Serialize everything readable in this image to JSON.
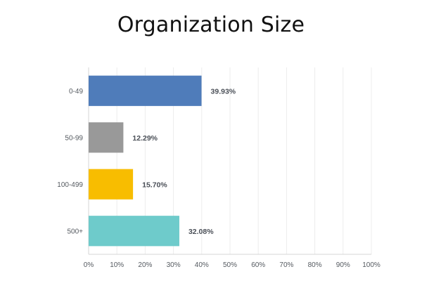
{
  "chart_data": {
    "type": "bar",
    "orientation": "horizontal",
    "title": "Organization Size",
    "categories": [
      "0-49",
      "50-99",
      "100-499",
      "500+"
    ],
    "values": [
      39.93,
      12.29,
      15.7,
      32.08
    ],
    "value_labels": [
      "39.93%",
      "12.29%",
      "15.70%",
      "32.08%"
    ],
    "colors": [
      "#4f7cba",
      "#999999",
      "#f8bd00",
      "#6ecbcb"
    ],
    "xlim": [
      0,
      100
    ],
    "x_ticks": [
      "0%",
      "10%",
      "20%",
      "30%",
      "40%",
      "50%",
      "60%",
      "70%",
      "80%",
      "90%",
      "100%"
    ],
    "xlabel": "",
    "ylabel": "",
    "grid": true
  }
}
